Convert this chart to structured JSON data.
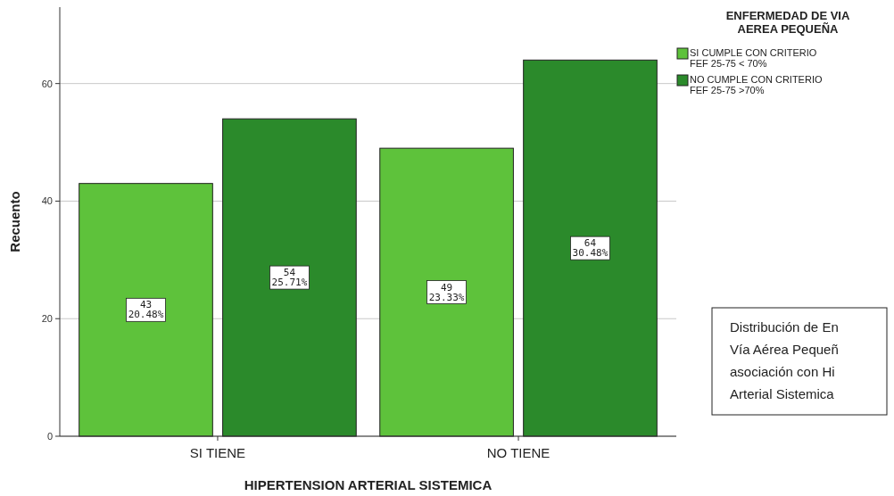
{
  "chart_data": {
    "type": "bar",
    "xlabel": "HIPERTENSION ARTERIAL SISTEMICA",
    "ylabel": "Recuento",
    "legend_title": "ENFERMEDAD DE VIA AEREA PEQUEÑA",
    "categories": [
      "SI TIENE",
      "NO TIENE"
    ],
    "series": [
      {
        "name": "SI CUMPLE CON CRITERIO FEF 25-75 < 70%",
        "color": "#5ec23b",
        "values": [
          43,
          49
        ],
        "value_labels": [
          "43 20.48%",
          "49 23.33%"
        ]
      },
      {
        "name": "NO CUMPLE CON CRITERIO FEF 25-75 >70%",
        "color": "#2b8a2b",
        "values": [
          54,
          64
        ],
        "value_labels": [
          "54 25.71%",
          "64 30.48%"
        ]
      }
    ],
    "ylim": [
      0,
      73
    ],
    "yticks": [
      0,
      20,
      40,
      60
    ],
    "grid": "y",
    "legend": "top right",
    "annotations": [
      "Distribución de En Vía Aérea Pequeñ asociación con Hi Arterial Sistemica"
    ]
  }
}
